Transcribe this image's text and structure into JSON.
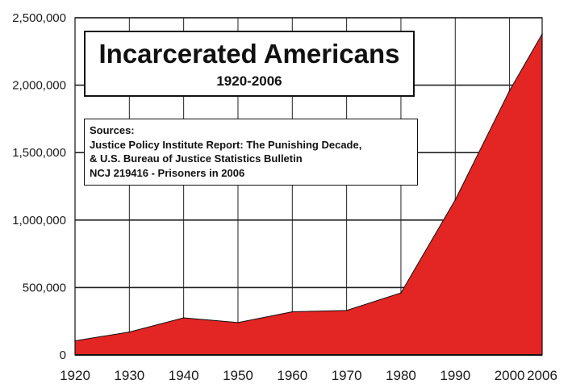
{
  "chart_data": {
    "type": "area",
    "title": "Incarcerated Americans",
    "subtitle": "1920-2006",
    "x": [
      1920,
      1930,
      1940,
      1950,
      1960,
      1970,
      1980,
      1990,
      2000,
      2006
    ],
    "x_tick_labels": [
      "1920",
      "1930",
      "1940",
      "1950",
      "1960",
      "1970",
      "1980",
      "1990",
      "2000",
      "2006"
    ],
    "series": [
      {
        "values": [
          105000,
          170000,
          275000,
          240000,
          320000,
          330000,
          460000,
          1150000,
          1960000,
          2380000
        ]
      }
    ],
    "ylim": [
      0,
      2500000
    ],
    "y_ticks": [
      0,
      500000,
      1000000,
      1500000,
      2000000,
      2500000
    ],
    "y_tick_labels": [
      "0",
      "500,000",
      "1,000,000",
      "1,500,000",
      "2,000,000",
      "2,500,000"
    ],
    "xlabel": "",
    "ylabel": "",
    "grid": true,
    "fill_color": "#e32524",
    "annotation": {
      "lines": [
        "Sources:",
        "Justice Policy Institute Report: The Punishing Decade,",
        "& U.S. Bureau of Justice Statistics Bulletin",
        "NCJ 219416 - Prisoners in 2006"
      ]
    }
  }
}
